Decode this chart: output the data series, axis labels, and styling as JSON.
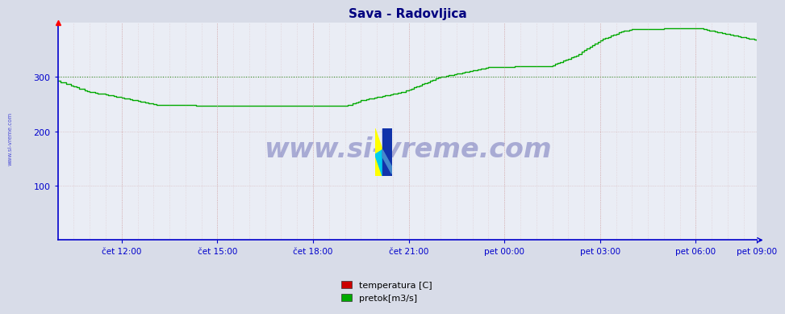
{
  "title": "Sava - Radovljica",
  "title_color": "#000080",
  "bg_color": "#d8dce8",
  "plot_bg_color": "#eaedf5",
  "ylim": [
    0,
    400
  ],
  "yticks": [
    100,
    200,
    300
  ],
  "xticklabels": [
    "čet 12:00",
    "čet 15:00",
    "čet 18:00",
    "čet 21:00",
    "pet 00:00",
    "pet 03:00",
    "pet 06:00",
    "pet 09:00"
  ],
  "legend_labels": [
    "temperatura [C]",
    "pretok[m3/s]"
  ],
  "legend_colors": [
    "#cc0000",
    "#00aa00"
  ],
  "pretok_color": "#00aa00",
  "axis_color": "#0000cc",
  "tick_color": "#0000cc",
  "grid_color": "#cc9999",
  "hline_color": "#008800",
  "hline_y": 300,
  "watermark_text": "www.si-vreme.com",
  "watermark_color": "#000080",
  "sidebar_text": "www.si-vreme.com",
  "sidebar_color": "#0000cc",
  "pretok_data": [
    293,
    291,
    290,
    288,
    287,
    285,
    283,
    281,
    279,
    278,
    276,
    274,
    273,
    272,
    271,
    270,
    270,
    269,
    268,
    267,
    266,
    265,
    264,
    263,
    262,
    261,
    260,
    259,
    258,
    257,
    256,
    255,
    254,
    253,
    252,
    251,
    250,
    249,
    249,
    249,
    249,
    249,
    249,
    249,
    249,
    248,
    248,
    248,
    248,
    248,
    248,
    248,
    247,
    247,
    247,
    247,
    247,
    247,
    247,
    247,
    247,
    247,
    247,
    247,
    247,
    247,
    247,
    247,
    247,
    247,
    247,
    247,
    247,
    247,
    247,
    247,
    247,
    247,
    247,
    247,
    247,
    247,
    247,
    247,
    247,
    247,
    247,
    247,
    247,
    247,
    247,
    247,
    247,
    247,
    247,
    247,
    247,
    247,
    247,
    247,
    247,
    247,
    247,
    247,
    247,
    247,
    247,
    247,
    247,
    248,
    249,
    251,
    253,
    255,
    257,
    258,
    259,
    260,
    261,
    262,
    263,
    264,
    265,
    266,
    267,
    268,
    269,
    270,
    271,
    272,
    273,
    275,
    277,
    279,
    281,
    283,
    285,
    287,
    289,
    291,
    293,
    295,
    297,
    299,
    300,
    301,
    302,
    303,
    304,
    305,
    306,
    307,
    308,
    309,
    310,
    311,
    312,
    313,
    314,
    315,
    316,
    317,
    318,
    319,
    319,
    319,
    319,
    319,
    319,
    319,
    319,
    319,
    320,
    320,
    320,
    320,
    320,
    320,
    320,
    320,
    320,
    320,
    320,
    320,
    320,
    320,
    322,
    324,
    326,
    328,
    330,
    332,
    334,
    336,
    338,
    340,
    343,
    347,
    350,
    353,
    356,
    359,
    362,
    365,
    368,
    370,
    372,
    374,
    376,
    378,
    380,
    382,
    384,
    385,
    386,
    387,
    388,
    388,
    388,
    388,
    388,
    388,
    388,
    388,
    388,
    388,
    388,
    388,
    390,
    390,
    390,
    390,
    390,
    390,
    390,
    390,
    390,
    390,
    390,
    390,
    390,
    390,
    390,
    388,
    387,
    386,
    385,
    384,
    383,
    382,
    381,
    380,
    379,
    378,
    377,
    376,
    375,
    374,
    373,
    372,
    371,
    370,
    369,
    368
  ]
}
